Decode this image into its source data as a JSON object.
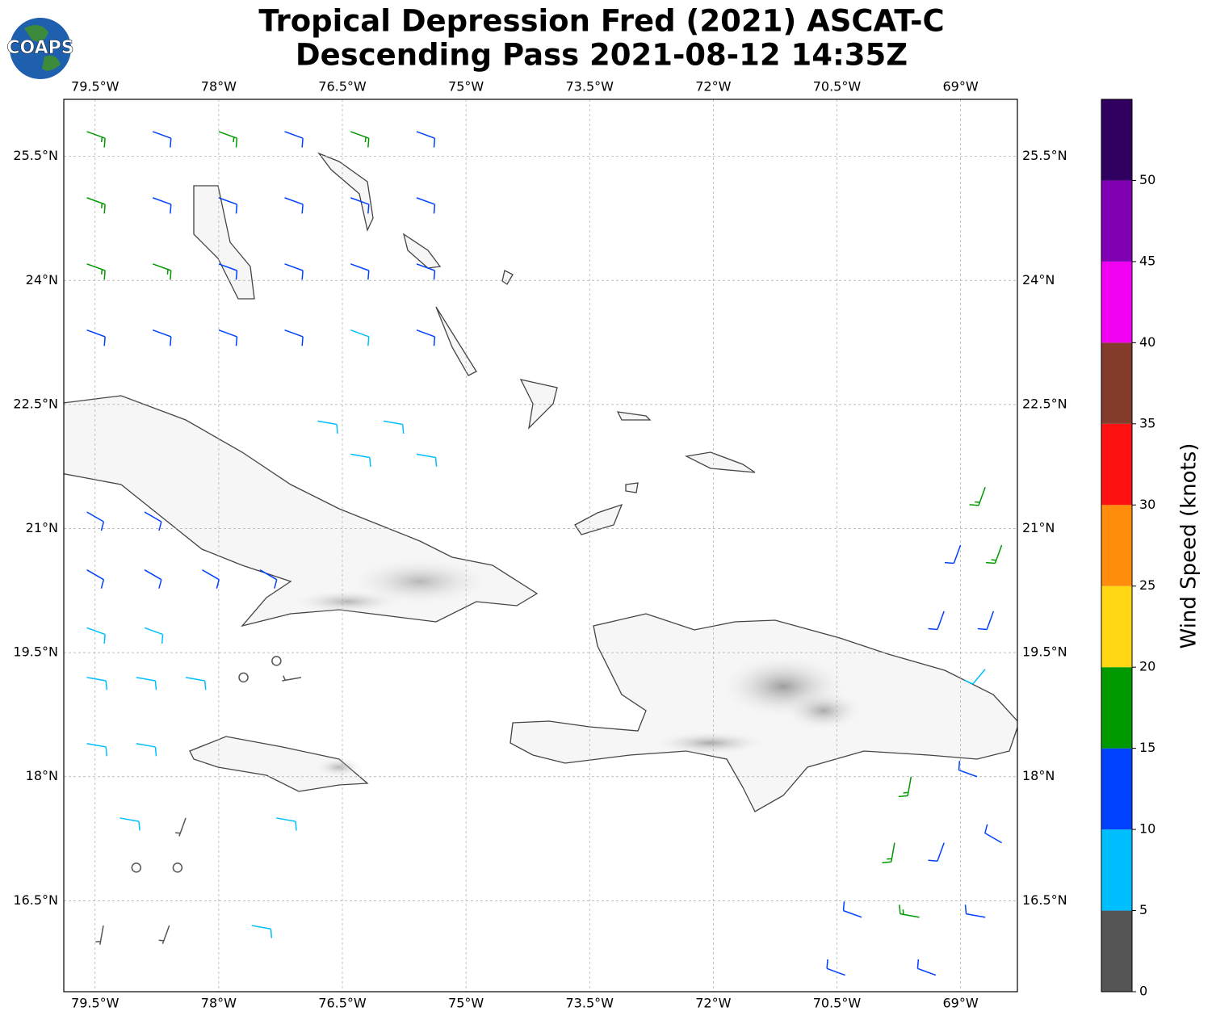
{
  "map": {
    "logo": "COAPS",
    "title": [
      "Tropical Depression Fred (2021) ASCAT-C",
      "Descending Pass 2021-08-12 14:35Z"
    ],
    "lonlim": [
      -79.88,
      -68.31
    ],
    "latlim": [
      15.4,
      26.19
    ],
    "lonticks": [
      {
        "value": -79.5,
        "label": "79.5°W"
      },
      {
        "value": -78,
        "label": "78°W"
      },
      {
        "value": -76.5,
        "label": "76.5°W"
      },
      {
        "value": -75,
        "label": "75°W"
      },
      {
        "value": -73.5,
        "label": "73.5°W"
      },
      {
        "value": -72,
        "label": "72°W"
      },
      {
        "value": -70.5,
        "label": "70.5°W"
      },
      {
        "value": -69,
        "label": "69°W"
      }
    ],
    "latticks": [
      {
        "value": 16.5,
        "label": "16.5°N"
      },
      {
        "value": 18,
        "label": "18°N"
      },
      {
        "value": 19.5,
        "label": "19.5°N"
      },
      {
        "value": 21,
        "label": "21°N"
      },
      {
        "value": 22.5,
        "label": "22.5°N"
      },
      {
        "value": 24,
        "label": "24°N"
      },
      {
        "value": 25.5,
        "label": "25.5°N"
      }
    ],
    "grid": true,
    "colorbar": {
      "label": "Wind Speed (knots)",
      "lim": [
        0,
        55
      ],
      "ticks": [
        0,
        5,
        10,
        15,
        20,
        25,
        30,
        35,
        40,
        45,
        50
      ],
      "colors": [
        "#555555",
        "#00bfff",
        "#0040ff",
        "#009900",
        "#ffd712",
        "#ff8c0a",
        "#ff1111",
        "#833b2b",
        "#f200f2",
        "#8000b4",
        "#300060"
      ]
    },
    "barbs": {
      "lon": [
        -79.6,
        -78.8,
        -78.0,
        -77.2,
        -76.4,
        -75.6,
        -79.6,
        -78.8,
        -78.0,
        -77.2,
        -76.4,
        -75.6,
        -79.6,
        -78.8,
        -78.0,
        -77.2,
        -76.4,
        -75.6,
        -79.6,
        -78.8,
        -78.0,
        -77.2,
        -76.4,
        -75.6,
        -76.8,
        -76.0,
        -76.4,
        -75.6,
        -79.6,
        -78.9,
        -79.6,
        -78.9,
        -78.2,
        -77.5,
        -79.6,
        -78.9,
        -79.6,
        -79.0,
        -78.4,
        -77.7,
        -77.0,
        -77.3,
        -79.6,
        -79.0,
        -79.2,
        -78.4,
        -77.3,
        -79.0,
        -78.5,
        -79.4,
        -78.6,
        -77.6,
        -68.7,
        -68.5,
        -69.0,
        -69.2,
        -68.6,
        -68.7,
        -69.6,
        -68.8,
        -69.8,
        -69.2,
        -68.5,
        -70.2,
        -69.5,
        -68.7,
        -70.4,
        -69.3
      ],
      "lat": [
        25.8,
        25.8,
        25.8,
        25.8,
        25.8,
        25.8,
        25.0,
        25.0,
        25.0,
        25.0,
        25.0,
        25.0,
        24.2,
        24.2,
        24.2,
        24.2,
        24.2,
        24.2,
        23.4,
        23.4,
        23.4,
        23.4,
        23.4,
        23.4,
        22.3,
        22.3,
        21.9,
        21.9,
        21.2,
        21.2,
        20.5,
        20.5,
        20.5,
        20.5,
        19.8,
        19.8,
        19.2,
        19.2,
        19.2,
        19.2,
        19.2,
        19.4,
        18.4,
        18.4,
        17.5,
        17.5,
        17.5,
        16.9,
        16.9,
        16.2,
        16.2,
        16.2,
        21.5,
        20.8,
        20.8,
        20.0,
        20.0,
        19.3,
        18.0,
        18.0,
        17.2,
        17.2,
        17.2,
        16.3,
        16.3,
        16.3,
        15.6,
        15.6
      ],
      "speed": [
        17,
        12,
        17,
        12,
        17,
        12,
        17,
        12,
        12,
        12,
        12,
        12,
        17,
        17,
        12,
        12,
        12,
        12,
        12,
        12,
        12,
        12,
        8,
        12,
        8,
        8,
        8,
        8,
        12,
        12,
        12,
        12,
        12,
        12,
        8,
        8,
        8,
        8,
        8,
        2,
        3,
        1,
        8,
        8,
        8,
        3,
        8,
        1,
        1,
        4,
        3,
        8,
        17,
        17,
        12,
        12,
        12,
        8,
        17,
        12,
        17,
        12,
        12,
        12,
        17,
        12,
        12,
        12
      ],
      "direction": [
        110,
        110,
        110,
        110,
        110,
        110,
        110,
        110,
        110,
        110,
        110,
        110,
        110,
        110,
        110,
        110,
        110,
        110,
        110,
        110,
        110,
        110,
        110,
        110,
        100,
        100,
        100,
        100,
        120,
        120,
        120,
        120,
        120,
        120,
        110,
        110,
        100,
        100,
        100,
        200,
        260,
        0,
        100,
        100,
        100,
        200,
        100,
        0,
        0,
        190,
        200,
        100,
        200,
        200,
        200,
        200,
        200,
        220,
        190,
        290,
        190,
        200,
        300,
        290,
        280,
        280,
        290,
        290
      ]
    }
  }
}
